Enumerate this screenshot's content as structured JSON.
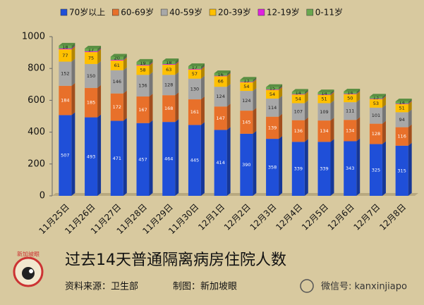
{
  "chart_data": {
    "type": "bar",
    "stacked": true,
    "title": "过去14天普通隔离病房住院人数",
    "source": "资料来源：卫生部",
    "credit": "制图：新加坡眼",
    "watermark": "微信号: kanxinjiapo",
    "logo_text": "新加坡眼",
    "categories": [
      "11月25日",
      "11月26日",
      "11月27日",
      "11月28日",
      "11月29日",
      "11月30日",
      "12月1日",
      "12月2日",
      "12月3日",
      "12月4日",
      "12月5日",
      "12月6日",
      "12月7日",
      "12月8日"
    ],
    "series": [
      {
        "name": "70岁以上",
        "color": "#1f4fd8",
        "label_color": "#ffffff",
        "values": [
          507,
          493,
          471,
          457,
          464,
          445,
          414,
          390,
          358,
          339,
          339,
          343,
          325,
          315
        ]
      },
      {
        "name": "60-69岁",
        "color": "#e8702a",
        "label_color": "#ffffff",
        "values": [
          184,
          185,
          172,
          167,
          168,
          161,
          147,
          145,
          139,
          136,
          134,
          134,
          128,
          116
        ]
      },
      {
        "name": "40-59岁",
        "color": "#a8a8a8",
        "label_color": "#222222",
        "values": [
          152,
          150,
          146,
          136,
          128,
          130,
          124,
          124,
          114,
          107,
          109,
          111,
          101,
          94
        ]
      },
      {
        "name": "20-39岁",
        "color": "#ffc000",
        "label_color": "#222222",
        "values": [
          77,
          75,
          61,
          58,
          63,
          57,
          66,
          54,
          54,
          54,
          51,
          50,
          53,
          51
        ]
      },
      {
        "name": "12-19岁",
        "color": "#e020e0",
        "values": [
          5,
          5,
          4,
          4,
          4,
          4,
          3,
          3,
          3,
          3,
          3,
          3,
          3,
          3
        ]
      },
      {
        "name": "0-11岁",
        "color": "#6aa84f",
        "label_color": "#222222",
        "values": [
          18,
          17,
          20,
          19,
          18,
          17,
          16,
          13,
          15,
          14,
          14,
          14,
          13,
          14
        ]
      }
    ],
    "ylim": [
      0,
      1000
    ],
    "yticks": [
      0,
      200,
      400,
      600,
      800,
      1000
    ]
  }
}
